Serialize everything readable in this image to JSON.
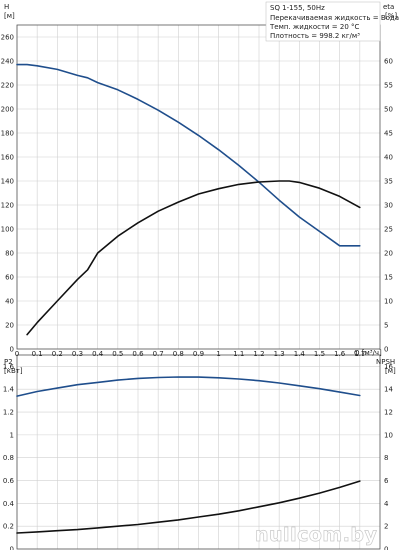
{
  "chart_data": [
    {
      "type": "line",
      "xlabel": "Q [м³/ч]",
      "xlim": [
        0,
        1.8
      ],
      "x_ticks": [
        0,
        0.1,
        0.2,
        0.3,
        0.4,
        0.5,
        0.6,
        0.7,
        0.8,
        0.9,
        1.0,
        1.1,
        1.2,
        1.3,
        1.4,
        1.5,
        1.6,
        1.7
      ],
      "x_tick_labels": [
        "0",
        "0.1",
        "0.2",
        "0.3",
        "0.4",
        "0.5",
        "0.6",
        "0.7",
        "0.8",
        "0.9",
        "1",
        "1.1",
        "1.2",
        "1.3",
        "1.4",
        "1.5",
        "1.6",
        "1.7"
      ],
      "ylabel_left": "H",
      "yunit_left": "[м]",
      "ylim_left": [
        0,
        270
      ],
      "y_ticks_left": [
        0,
        20,
        40,
        60,
        80,
        100,
        120,
        140,
        160,
        180,
        200,
        220,
        240,
        260
      ],
      "ylabel_right": "eta",
      "yunit_right": "[%]",
      "ylim_right": [
        0,
        67.5
      ],
      "y_ticks_right": [
        0,
        5,
        10,
        15,
        20,
        25,
        30,
        35,
        40,
        45,
        50,
        55,
        60
      ],
      "grid": true,
      "info": [
        "SQ 1-155, 50Hz",
        "Перекачиваемая жидкость = Вода",
        "Темп. жидкости = 20 °C",
        "Плотность = 998.2 кг/м³"
      ],
      "series": [
        {
          "axis": "left",
          "color": "#1f4e8c",
          "x": [
            0,
            0.05,
            0.1,
            0.2,
            0.3,
            0.35,
            0.4,
            0.5,
            0.6,
            0.7,
            0.8,
            0.9,
            1.0,
            1.1,
            1.2,
            1.3,
            1.4,
            1.5,
            1.6,
            1.7
          ],
          "values": [
            237,
            237,
            236,
            233,
            228,
            226,
            222,
            216,
            208,
            199,
            189,
            178,
            166,
            153,
            139,
            124,
            110,
            98,
            86,
            86
          ]
        },
        {
          "axis": "right",
          "color": "#111111",
          "x": [
            0.05,
            0.1,
            0.2,
            0.3,
            0.35,
            0.4,
            0.5,
            0.6,
            0.7,
            0.8,
            0.9,
            1.0,
            1.1,
            1.2,
            1.3,
            1.35,
            1.4,
            1.5,
            1.6,
            1.7
          ],
          "values": [
            3,
            5.5,
            10,
            14.5,
            16.5,
            20,
            23.5,
            26.3,
            28.7,
            30.6,
            32.3,
            33.4,
            34.3,
            34.8,
            35,
            35,
            34.7,
            33.5,
            31.8,
            29.5
          ]
        }
      ]
    },
    {
      "type": "line",
      "xlabel": "",
      "xlim": [
        0,
        1.8
      ],
      "ylabel_left": "P2",
      "yunit_left": "[кВт]",
      "ylim_left": [
        0,
        1.7
      ],
      "y_ticks_left": [
        0,
        0.2,
        0.4,
        0.6,
        0.8,
        1.0,
        1.2,
        1.4,
        1.6
      ],
      "y_tick_labels_left": [
        "0",
        "0.2",
        "0.4",
        "0.6",
        "0.8",
        "1",
        "1.2",
        "1.4",
        "1.6"
      ],
      "ylabel_right": "NPSH",
      "yunit_right": "[м]",
      "ylim_right": [
        0,
        17
      ],
      "y_ticks_right": [
        0,
        2,
        4,
        6,
        8,
        10,
        12,
        14,
        16
      ],
      "grid": true,
      "series": [
        {
          "axis": "left",
          "color": "#1f4e8c",
          "x": [
            0,
            0.1,
            0.2,
            0.3,
            0.4,
            0.5,
            0.6,
            0.7,
            0.8,
            0.9,
            1.0,
            1.1,
            1.2,
            1.3,
            1.4,
            1.5,
            1.6,
            1.7
          ],
          "values": [
            1.34,
            1.38,
            1.41,
            1.44,
            1.46,
            1.48,
            1.495,
            1.503,
            1.507,
            1.506,
            1.5,
            1.49,
            1.475,
            1.455,
            1.43,
            1.405,
            1.375,
            1.345
          ]
        },
        {
          "axis": "right",
          "color": "#111111",
          "x": [
            0,
            0.1,
            0.2,
            0.3,
            0.4,
            0.5,
            0.6,
            0.7,
            0.8,
            0.9,
            1.0,
            1.1,
            1.2,
            1.3,
            1.4,
            1.5,
            1.6,
            1.7
          ],
          "values": [
            1.4,
            1.5,
            1.6,
            1.7,
            1.85,
            2.0,
            2.15,
            2.35,
            2.55,
            2.8,
            3.05,
            3.35,
            3.7,
            4.05,
            4.45,
            4.9,
            5.4,
            5.95
          ]
        }
      ]
    }
  ],
  "watermark": "nullcom.by"
}
